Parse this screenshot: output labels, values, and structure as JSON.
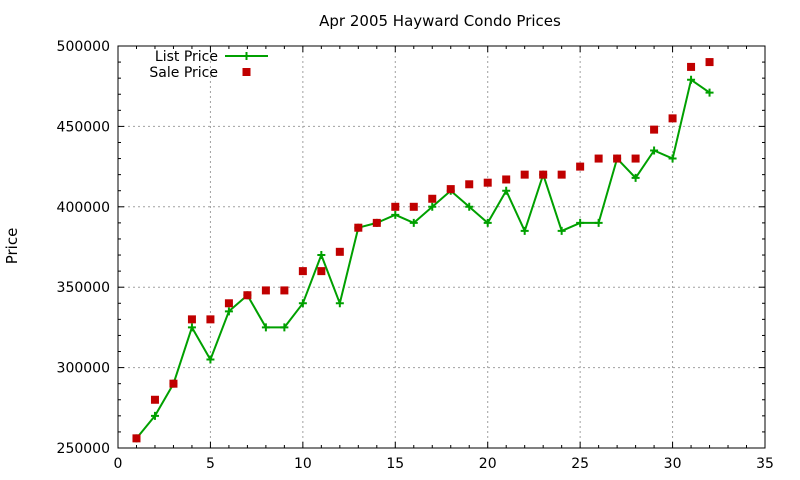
{
  "chart_data": {
    "type": "line",
    "title": "Apr 2005 Hayward Condo Prices",
    "xlabel": "",
    "ylabel": "Price",
    "xlim": [
      0,
      35
    ],
    "ylim": [
      250000,
      500000
    ],
    "xticks": [
      0,
      5,
      10,
      15,
      20,
      25,
      30,
      35
    ],
    "yticks": [
      250000,
      300000,
      350000,
      400000,
      450000,
      500000
    ],
    "grid": true,
    "legend_position": "top-left",
    "series": [
      {
        "name": "List Price",
        "style": "line-plus",
        "color": "#00a000",
        "x": [
          1,
          2,
          3,
          4,
          5,
          6,
          7,
          8,
          9,
          10,
          11,
          12,
          13,
          14,
          15,
          16,
          17,
          18,
          19,
          20,
          21,
          22,
          23,
          24,
          25,
          26,
          27,
          28,
          29,
          30,
          31,
          32
        ],
        "values": [
          256000,
          270000,
          290000,
          325000,
          305000,
          335000,
          345000,
          325000,
          325000,
          340000,
          370000,
          340000,
          387000,
          390000,
          395000,
          390000,
          400000,
          410000,
          400000,
          390000,
          410000,
          385000,
          420000,
          385000,
          390000,
          390000,
          430000,
          418000,
          435000,
          430000,
          479000,
          471000
        ]
      },
      {
        "name": "Sale Price",
        "style": "square-points",
        "color": "#c00000",
        "x": [
          1,
          2,
          3,
          4,
          5,
          6,
          7,
          8,
          9,
          10,
          11,
          12,
          13,
          14,
          15,
          16,
          17,
          18,
          19,
          20,
          21,
          22,
          23,
          24,
          25,
          26,
          27,
          28,
          29,
          30,
          31,
          32
        ],
        "values": [
          256000,
          280000,
          290000,
          330000,
          330000,
          340000,
          345000,
          348000,
          348000,
          360000,
          360000,
          372000,
          387000,
          390000,
          400000,
          400000,
          405000,
          411000,
          414000,
          415000,
          417000,
          420000,
          420000,
          420000,
          425000,
          430000,
          430000,
          430000,
          448000,
          455000,
          487000,
          490000
        ]
      }
    ]
  }
}
